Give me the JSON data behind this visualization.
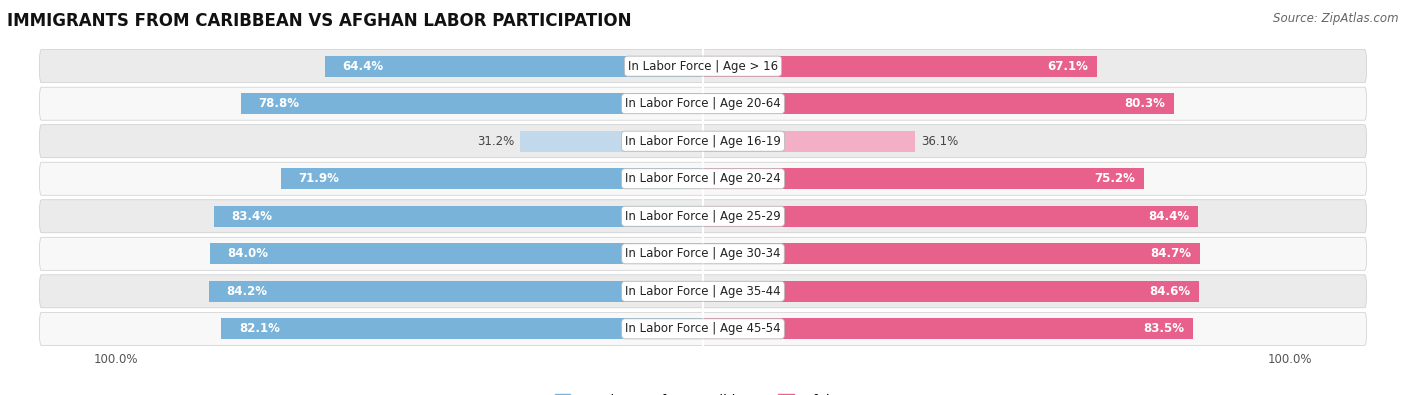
{
  "title": "IMMIGRANTS FROM CARIBBEAN VS AFGHAN LABOR PARTICIPATION",
  "source": "Source: ZipAtlas.com",
  "categories": [
    "In Labor Force | Age > 16",
    "In Labor Force | Age 20-64",
    "In Labor Force | Age 16-19",
    "In Labor Force | Age 20-24",
    "In Labor Force | Age 25-29",
    "In Labor Force | Age 30-34",
    "In Labor Force | Age 35-44",
    "In Labor Force | Age 45-54"
  ],
  "caribbean_values": [
    64.4,
    78.8,
    31.2,
    71.9,
    83.4,
    84.0,
    84.2,
    82.1
  ],
  "afghan_values": [
    67.1,
    80.3,
    36.1,
    75.2,
    84.4,
    84.7,
    84.6,
    83.5
  ],
  "caribbean_color": "#7ab3d9",
  "caribbean_light_color": "#c2d9ec",
  "afghan_color": "#e8618c",
  "afghan_light_color": "#f2afc6",
  "row_bg_color_odd": "#ebebeb",
  "row_bg_color_even": "#f8f8f8",
  "max_value": 100.0,
  "bar_height": 0.62,
  "label_fontsize": 8.5,
  "title_fontsize": 12,
  "source_fontsize": 8.5,
  "legend_fontsize": 9.5,
  "value_fontsize": 8.5,
  "light_row_index": 2
}
